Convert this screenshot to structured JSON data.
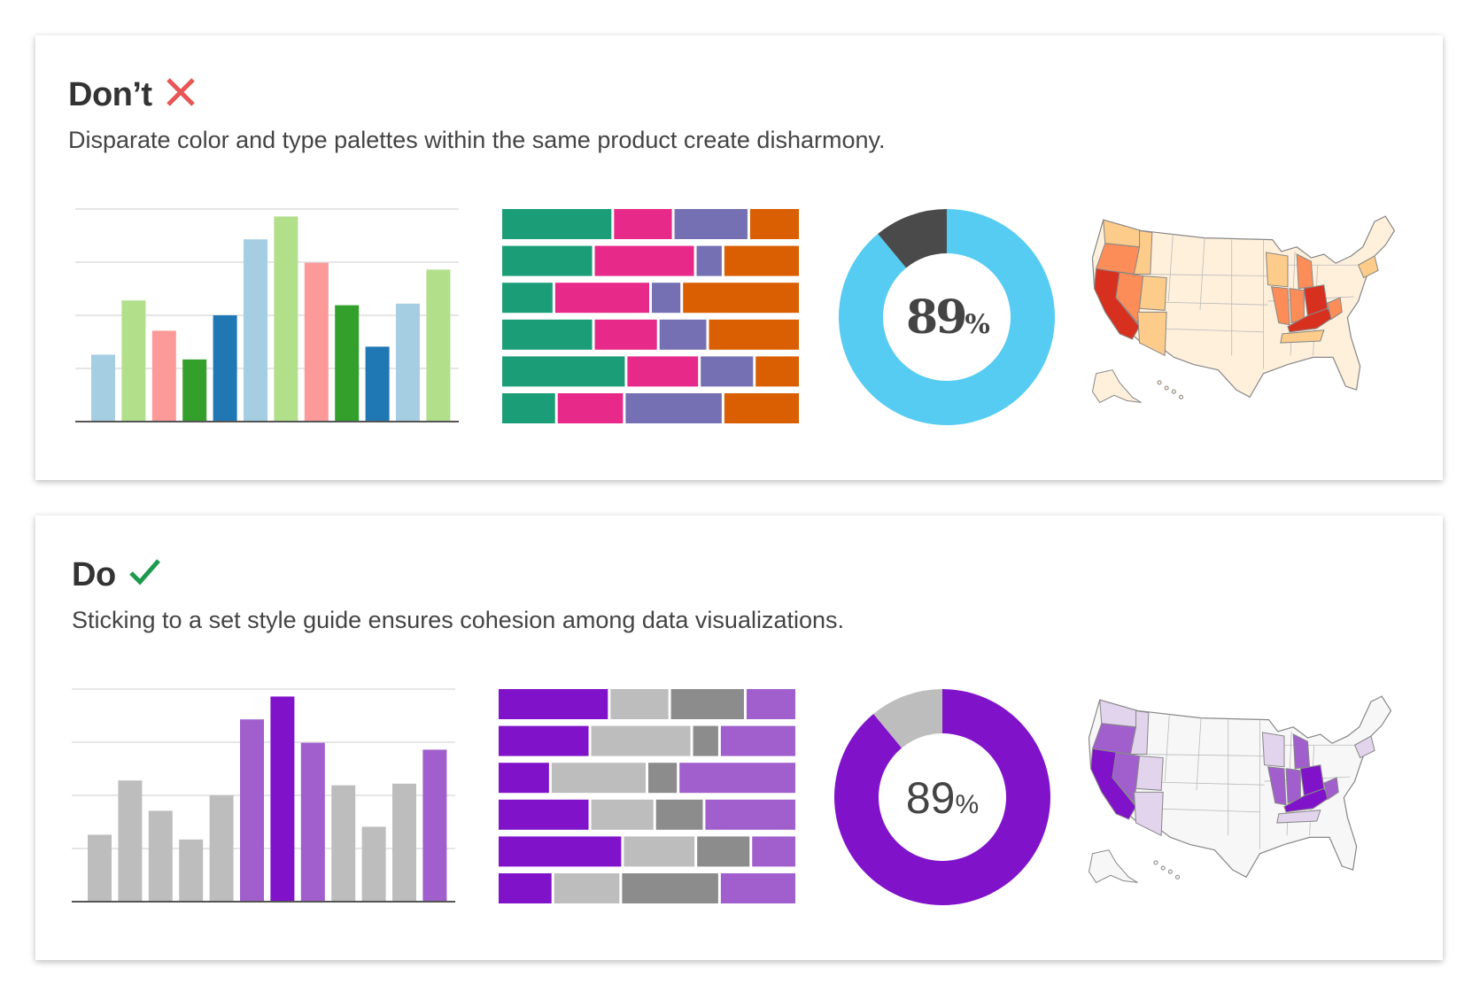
{
  "panels": [
    {
      "title": "Don’t",
      "icon": "x-icon",
      "icon_color": "#e85555",
      "description": "Disparate color and type palettes within the same product create disharmony."
    },
    {
      "title": "Do",
      "icon": "check-icon",
      "icon_color": "#1e9a4e",
      "description": "Sticking to a set style guide ensures cohesion among data visualizations."
    }
  ],
  "chart_data": [
    {
      "panel": "dont",
      "type": "bar",
      "ylim": [
        0,
        4
      ],
      "grid": true,
      "values": [
        1.26,
        2.28,
        1.71,
        1.17,
        2.0,
        3.43,
        3.86,
        2.99,
        2.19,
        1.41,
        2.22,
        2.86
      ],
      "colors": [
        "#a6cee3",
        "#b2df8a",
        "#fb9a99",
        "#33a02c",
        "#1f78b4",
        "#a6cee3",
        "#b2df8a",
        "#fb9a99",
        "#33a02c",
        "#1f78b4",
        "#a6cee3",
        "#b2df8a"
      ]
    },
    {
      "panel": "dont",
      "type": "bar",
      "stacked": true,
      "orientation": "horizontal",
      "rows": [
        [
          37,
          20,
          25,
          17
        ],
        [
          30,
          33,
          9,
          25
        ],
        [
          17,
          31,
          10,
          38
        ],
        [
          30,
          21,
          16,
          30
        ],
        [
          41,
          24,
          18,
          15
        ],
        [
          18,
          22,
          32,
          25
        ]
      ],
      "colors": [
        "#1b9e77",
        "#e7298a",
        "#7570b3",
        "#d95f02"
      ]
    },
    {
      "panel": "dont",
      "type": "pie",
      "donut": true,
      "values": [
        89,
        11
      ],
      "colors": [
        "#56ccf2",
        "#4a4a4a"
      ],
      "label": "89",
      "label_suffix": "%",
      "label_color": "#444"
    },
    {
      "panel": "dont",
      "type": "map",
      "base_color": "#fff0dc",
      "stroke": "#888",
      "region_colors": {
        "high": "#d7301f",
        "mid": "#fc8d59",
        "low": "#fdcc8a"
      }
    },
    {
      "panel": "do",
      "type": "bar",
      "ylim": [
        0,
        4
      ],
      "grid": true,
      "values": [
        1.26,
        2.28,
        1.71,
        1.17,
        2.0,
        3.43,
        3.86,
        2.99,
        2.19,
        1.41,
        2.22,
        2.86
      ],
      "colors": [
        "#bdbdbd",
        "#bdbdbd",
        "#bdbdbd",
        "#bdbdbd",
        "#bdbdbd",
        "#a05fcc",
        "#8013c9",
        "#a05fcc",
        "#bdbdbd",
        "#bdbdbd",
        "#bdbdbd",
        "#a05fcc"
      ]
    },
    {
      "panel": "do",
      "type": "bar",
      "stacked": true,
      "orientation": "horizontal",
      "rows": [
        [
          37,
          20,
          25,
          17
        ],
        [
          30,
          33,
          9,
          25
        ],
        [
          17,
          31,
          10,
          38
        ],
        [
          30,
          21,
          16,
          30
        ],
        [
          41,
          24,
          18,
          15
        ],
        [
          18,
          22,
          32,
          25
        ]
      ],
      "colors": [
        "#8013c9",
        "#bdbdbd",
        "#8c8c8c",
        "#a05fcc"
      ]
    },
    {
      "panel": "do",
      "type": "pie",
      "donut": true,
      "values": [
        89,
        11
      ],
      "colors": [
        "#8013c9",
        "#bdbdbd"
      ],
      "label": "89",
      "label_suffix": "%",
      "label_color": "#444"
    },
    {
      "panel": "do",
      "type": "map",
      "base_color": "#f7f7f7",
      "stroke": "#888",
      "region_colors": {
        "high": "#8013c9",
        "mid": "#a05fcc",
        "low": "#e3d4ee"
      }
    }
  ]
}
